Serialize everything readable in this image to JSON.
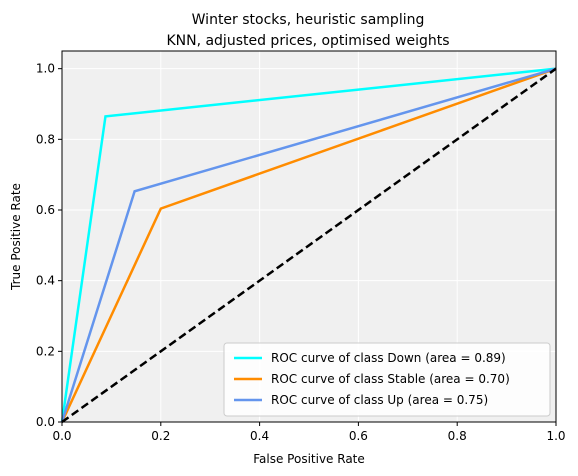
{
  "chart_data": {
    "type": "line",
    "title_lines": [
      "Winter stocks, heuristic sampling",
      "KNN, adjusted prices, optimised weights"
    ],
    "xlabel": "False Positive Rate",
    "ylabel": "True Positive Rate",
    "xlim": [
      0.0,
      1.0
    ],
    "ylim": [
      0.0,
      1.05
    ],
    "xticks": [
      0.0,
      0.2,
      0.4,
      0.6,
      0.8,
      1.0
    ],
    "yticks": [
      0.0,
      0.2,
      0.4,
      0.6,
      0.8,
      1.0
    ],
    "xtick_labels": [
      "0.0",
      "0.2",
      "0.4",
      "0.6",
      "0.8",
      "1.0"
    ],
    "ytick_labels": [
      "0.0",
      "0.2",
      "0.4",
      "0.6",
      "0.8",
      "1.0"
    ],
    "grid": true,
    "legend_position": "bottom-right",
    "series": [
      {
        "name": "ROC curve of class Down (area = 0.89)",
        "color": "#00ffff",
        "x": [
          0.0,
          0.088,
          1.0
        ],
        "y": [
          0.0,
          0.865,
          1.0
        ]
      },
      {
        "name": "ROC curve of class Stable (area = 0.70)",
        "color": "#ff8c00",
        "x": [
          0.0,
          0.2,
          1.0
        ],
        "y": [
          0.0,
          0.604,
          1.0
        ]
      },
      {
        "name": "ROC curve of class Up (area = 0.75)",
        "color": "#6495ed",
        "x": [
          0.0,
          0.147,
          1.0
        ],
        "y": [
          0.0,
          0.653,
          1.0
        ]
      }
    ],
    "reference_line": {
      "x": [
        0.0,
        1.0
      ],
      "y": [
        0.0,
        1.0
      ],
      "color": "#000000",
      "style": "dashed"
    }
  },
  "colors": {
    "plot_background": "#f0f0f0",
    "grid": "#ffffff",
    "axis": "#000000"
  }
}
